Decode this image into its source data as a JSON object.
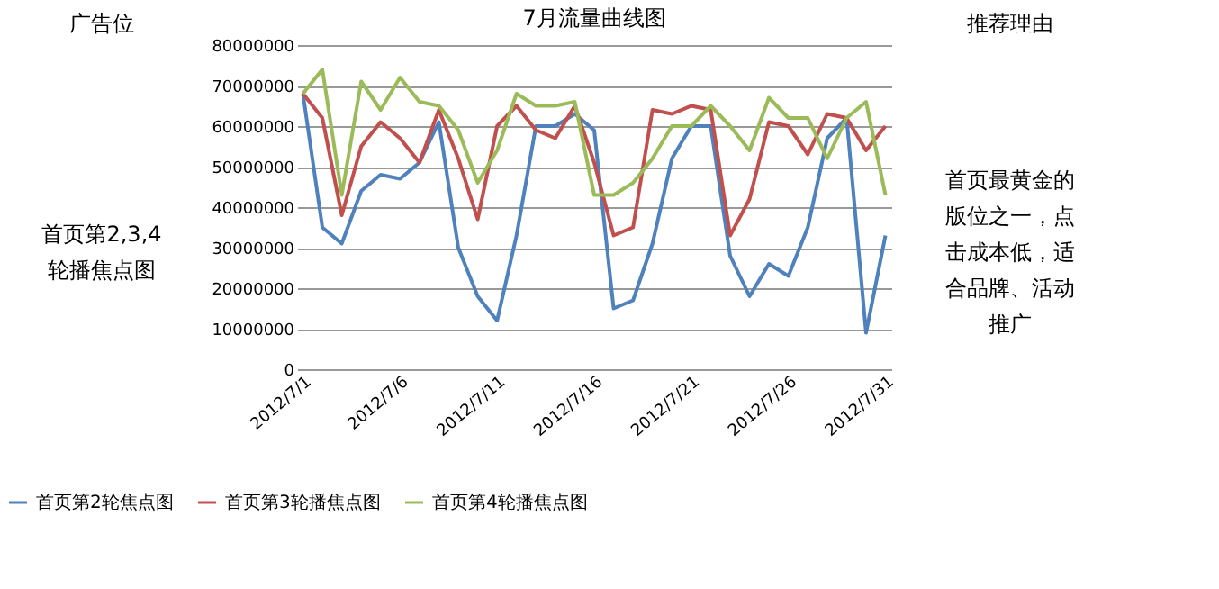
{
  "chart_data": {
    "type": "line",
    "title": "7月流量曲线图",
    "annotations": [
      "广告位",
      "首页第2,3,4轮播焦点图",
      "推荐理由",
      "首页最黄金的版位之一，点击成本低，适合品牌、活动推广"
    ],
    "categories": [
      "2012/7/1",
      null,
      null,
      null,
      null,
      "2012/7/6",
      null,
      null,
      null,
      null,
      "2012/7/11",
      null,
      null,
      null,
      null,
      "2012/7/16",
      null,
      null,
      null,
      null,
      "2012/7/21",
      null,
      null,
      null,
      null,
      "2012/7/26",
      null,
      null,
      null,
      null,
      "2012/7/31"
    ],
    "series": [
      {
        "name": "首页第2轮焦点图",
        "color": "#4f81bd",
        "values": [
          68000000,
          35000000,
          31000000,
          44000000,
          48000000,
          47000000,
          51000000,
          61000000,
          30000000,
          18000000,
          12000000,
          33000000,
          60000000,
          60000000,
          63000000,
          59000000,
          15000000,
          17000000,
          31000000,
          52000000,
          60000000,
          60000000,
          28000000,
          18000000,
          26000000,
          23000000,
          35000000,
          57000000,
          62000000,
          9000000,
          33000000
        ]
      },
      {
        "name": "首页第3轮播焦点图",
        "color": "#c0504d",
        "values": [
          68000000,
          62000000,
          38000000,
          55000000,
          61000000,
          57000000,
          51000000,
          64000000,
          52000000,
          37000000,
          60000000,
          65000000,
          59000000,
          57000000,
          65000000,
          51000000,
          33000000,
          35000000,
          64000000,
          63000000,
          65000000,
          64000000,
          33000000,
          42000000,
          61000000,
          60000000,
          53000000,
          63000000,
          62000000,
          54000000,
          60000000
        ]
      },
      {
        "name": "首页第4轮播焦点图",
        "color": "#9bbb59",
        "values": [
          68000000,
          74000000,
          43000000,
          71000000,
          64000000,
          72000000,
          66000000,
          65000000,
          59000000,
          46000000,
          54000000,
          68000000,
          65000000,
          65000000,
          66000000,
          43000000,
          43000000,
          46000000,
          52000000,
          60000000,
          60000000,
          65000000,
          60000000,
          54000000,
          67000000,
          62000000,
          62000000,
          52000000,
          62000000,
          66000000,
          43000000
        ]
      }
    ],
    "ylim": [
      0,
      80000000
    ],
    "yticks": [
      0,
      10000000,
      20000000,
      30000000,
      40000000,
      50000000,
      60000000,
      70000000,
      80000000
    ],
    "grid": "y",
    "legend": "bottom",
    "marker": "none",
    "line_style": "solid"
  }
}
